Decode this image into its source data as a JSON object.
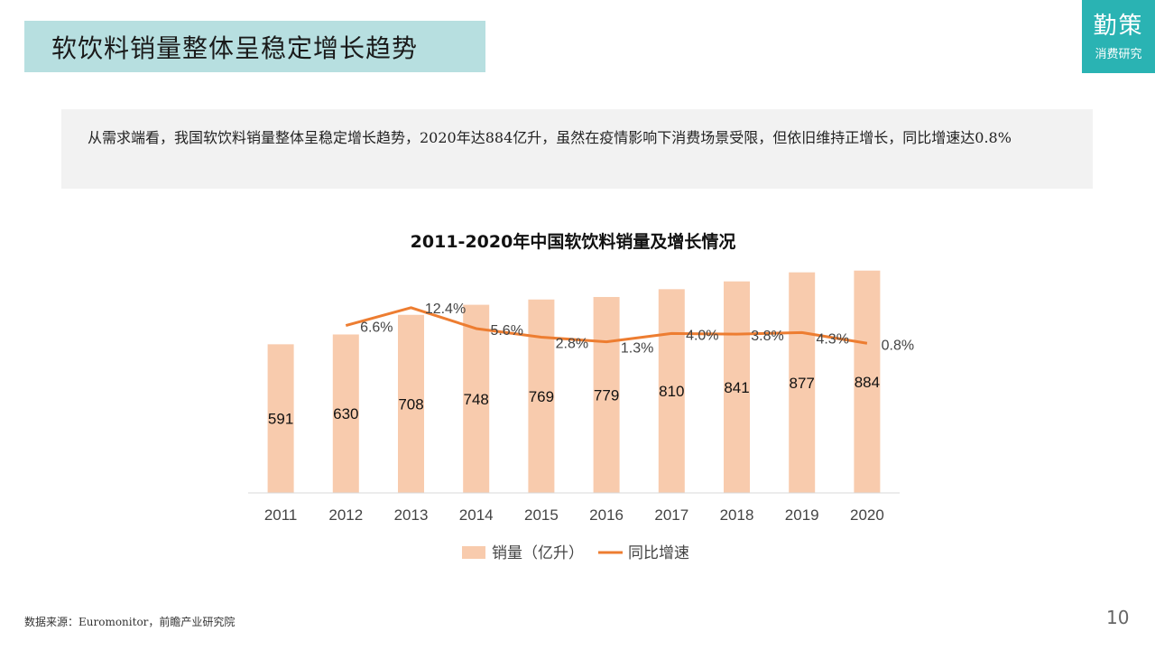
{
  "slide": {
    "title": "软饮料销量整体呈稳定增长趋势",
    "page_number": "10"
  },
  "logo": {
    "line1": "勤策",
    "line2": "消费研究"
  },
  "summary": {
    "text": "从需求端看，我国软饮料销量整体呈稳定增长趋势，2020年达884亿升，虽然在疫情影响下消费场景受限，但依旧维持正增长，同比增速达0.8%"
  },
  "source": {
    "text": "数据来源：Euromonitor，前瞻产业研究院"
  },
  "colors": {
    "bar": "#f8cbad",
    "line": "#ed7d31",
    "banner": "#b7dfe0",
    "logo": "#2ab3b3"
  },
  "chart_data": {
    "type": "bar",
    "title": "2011-2020年中国软饮料销量及增长情况",
    "categories": [
      "2011",
      "2012",
      "2013",
      "2014",
      "2015",
      "2016",
      "2017",
      "2018",
      "2019",
      "2020"
    ],
    "series": [
      {
        "name": "销量（亿升）",
        "type": "bar",
        "values": [
          591,
          630,
          708,
          748,
          769,
          779,
          810,
          841,
          877,
          884
        ],
        "labels": [
          "591",
          "630",
          "708",
          "748",
          "769",
          "779",
          "810",
          "841",
          "877",
          "884"
        ]
      },
      {
        "name": "同比增速",
        "type": "line",
        "values": [
          null,
          6.6,
          12.4,
          5.6,
          2.8,
          1.3,
          4.0,
          3.8,
          4.3,
          0.8
        ],
        "labels": [
          "",
          "6.6%",
          "12.4%",
          "5.6%",
          "2.8%",
          "1.3%",
          "4.0%",
          "3.8%",
          "4.3%",
          "0.8%"
        ]
      }
    ],
    "legend": {
      "position": "bottom"
    },
    "grid": false
  }
}
